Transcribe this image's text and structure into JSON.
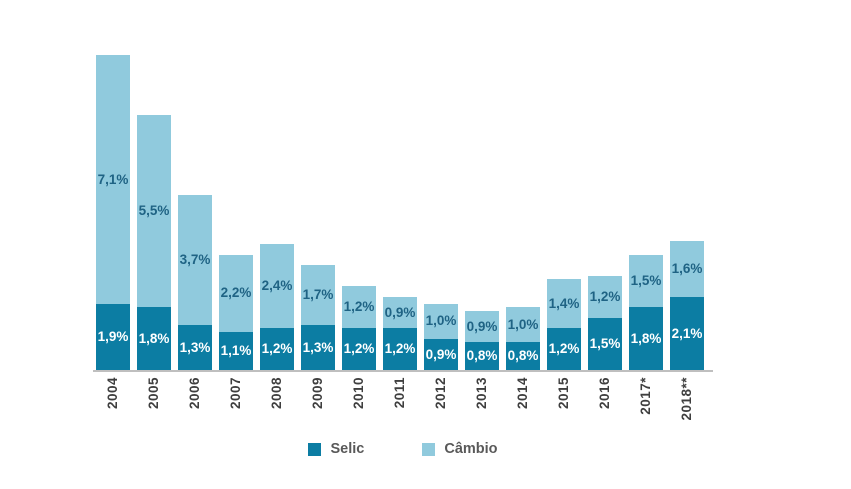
{
  "chart_data": {
    "type": "bar",
    "stacked": true,
    "title": "",
    "xlabel": "",
    "ylabel": "",
    "ylim": [
      0,
      9.5
    ],
    "grid": false,
    "legend_position": "bottom",
    "value_format": "percent with comma decimal",
    "background": "#FFFFFF",
    "axis": {
      "line_color": "#BFBFBF",
      "tick_label_color": "#3F3F3F"
    },
    "legend": {
      "text_color": "#595959"
    },
    "categories": [
      "2004",
      "2005",
      "2006",
      "2007",
      "2008",
      "2009",
      "2010",
      "2011",
      "2012",
      "2013",
      "2014",
      "2015",
      "2016",
      "2017*",
      "2018**"
    ],
    "series": [
      {
        "name": "Selic",
        "color": "#0C7DA3",
        "label_color": "#FFFFFF",
        "values": [
          1.9,
          1.8,
          1.3,
          1.1,
          1.2,
          1.3,
          1.2,
          1.2,
          0.9,
          0.8,
          0.8,
          1.2,
          1.5,
          1.8,
          2.1
        ],
        "labels": [
          "1,9%",
          "1,8%",
          "1,3%",
          "1,1%",
          "1,2%",
          "1,3%",
          "1,2%",
          "1,2%",
          "0,9%",
          "0,8%",
          "0,8%",
          "1,2%",
          "1,5%",
          "1,8%",
          "2,1%"
        ]
      },
      {
        "name": "Câmbio",
        "color": "#90CADD",
        "label_color": "#1F6384",
        "values": [
          7.1,
          5.5,
          3.7,
          2.2,
          2.4,
          1.7,
          1.2,
          0.9,
          1.0,
          0.9,
          1.0,
          1.4,
          1.2,
          1.5,
          1.6
        ],
        "labels": [
          "7,1%",
          "5,5%",
          "3,7%",
          "2,2%",
          "2,4%",
          "1,7%",
          "1,2%",
          "0,9%",
          "1,0%",
          "0,9%",
          "1,0%",
          "1,4%",
          "1,2%",
          "1,5%",
          "1,6%"
        ]
      }
    ]
  }
}
